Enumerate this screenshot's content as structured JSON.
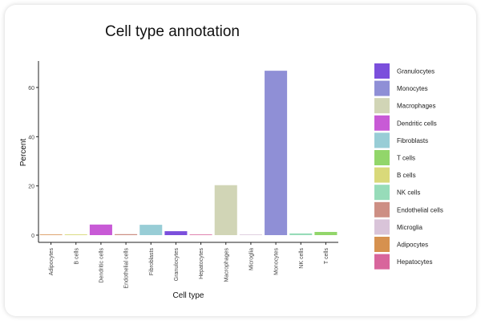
{
  "chart_data": {
    "type": "bar",
    "title": "Cell type annotation",
    "xlabel": "Cell type",
    "ylabel": "Percent",
    "ylim": [
      0,
      70
    ],
    "yticks": [
      0,
      20,
      40,
      60
    ],
    "grid": false,
    "legend_position": "right",
    "categories": [
      "Adipocytes",
      "B cells",
      "Dendritic cells",
      "Endothelial cells",
      "Fibroblasts",
      "Granulocytes",
      "Hepatocytes",
      "Macrophages",
      "Microglia",
      "Monocytes",
      "NK cells",
      "T cells"
    ],
    "values": [
      0.2,
      0.3,
      4.3,
      0.4,
      4.2,
      1.6,
      0.2,
      20.3,
      0.1,
      66.8,
      0.7,
      1.3
    ],
    "colors": {
      "Granulocytes": "#7b4fdc",
      "Monocytes": "#8f8fd6",
      "Macrophages": "#d1d5b6",
      "Dendritic cells": "#c85ad6",
      "Fibroblasts": "#98cdd6",
      "T cells": "#92d66a",
      "B cells": "#d9d97a",
      "NK cells": "#97dcb9",
      "Endothelial cells": "#cd8f84",
      "Microglia": "#d9c4d9",
      "Adipocytes": "#d6914f",
      "Hepatocytes": "#d8659c"
    },
    "legend": [
      "Granulocytes",
      "Monocytes",
      "Macrophages",
      "Dendritic cells",
      "Fibroblasts",
      "T cells",
      "B cells",
      "NK cells",
      "Endothelial cells",
      "Microglia",
      "Adipocytes",
      "Hepatocytes"
    ]
  }
}
